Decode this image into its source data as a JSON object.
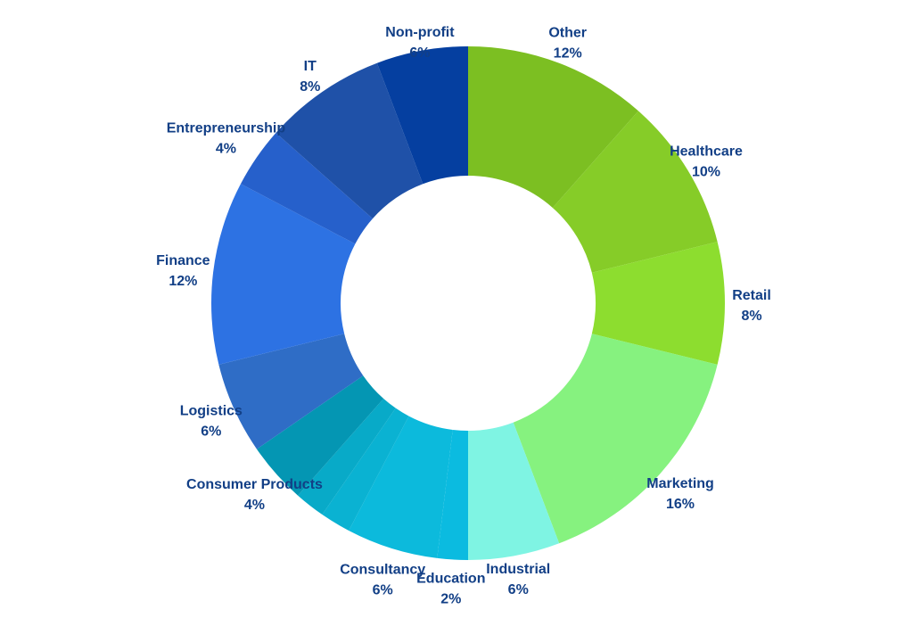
{
  "chart_data": {
    "type": "pie",
    "title": "",
    "slices": [
      {
        "label": "Other",
        "pct_label": "12%",
        "value": 12,
        "color": "#7cbf22"
      },
      {
        "label": "Healthcare",
        "pct_label": "10%",
        "value": 10,
        "color": "#86cc28"
      },
      {
        "label": "Retail",
        "pct_label": "8%",
        "value": 8,
        "color": "#8ddd2f"
      },
      {
        "label": "Marketing",
        "pct_label": "16%",
        "value": 16,
        "color": "#86f27f"
      },
      {
        "label": "Industrial",
        "pct_label": "6%",
        "value": 6,
        "color": "#7ff4e3"
      },
      {
        "label": "Education",
        "pct_label": "2%",
        "value": 2,
        "color": "#0bbbe0"
      },
      {
        "label": "Consultancy",
        "pct_label": "6%",
        "value": 6,
        "color": "#0cbadc"
      },
      {
        "label": "",
        "pct_label": "",
        "value": 2,
        "color": "#0ab2d2"
      },
      {
        "label": "",
        "pct_label": "",
        "value": 2,
        "color": "#08aac8"
      },
      {
        "label": "Consumer Products",
        "pct_label": "4%",
        "value": 4,
        "color": "#0496b3"
      },
      {
        "label": "Logistics",
        "pct_label": "6%",
        "value": 6,
        "color": "#2f6dc6"
      },
      {
        "label": "Finance",
        "pct_label": "12%",
        "value": 12,
        "color": "#2d72e3"
      },
      {
        "label": "Entrepreneurship",
        "pct_label": "4%",
        "value": 4,
        "color": "#2660cb"
      },
      {
        "label": "IT",
        "pct_label": "8%",
        "value": 8,
        "color": "#1f51a8"
      },
      {
        "label": "Non-profit",
        "pct_label": "6%",
        "value": 6,
        "color": "#053fa0"
      }
    ]
  }
}
